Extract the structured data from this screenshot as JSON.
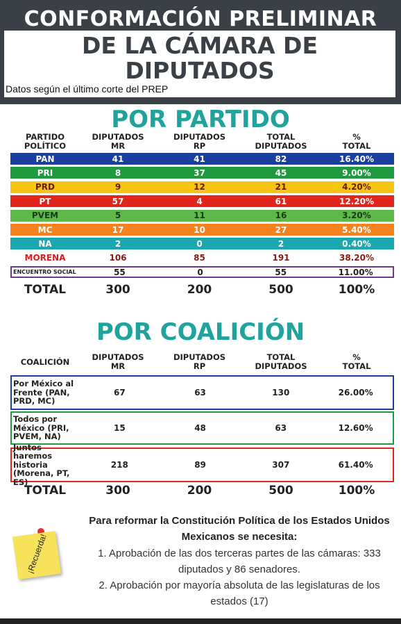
{
  "header": {
    "title_line1": "CONFORMACIÓN PRELIMINAR",
    "title_line2": "DE LA CÁMARA DE",
    "title_line3": "DIPUTADOS",
    "subtitle": "Datos según el último corte  del PREP"
  },
  "party_table": {
    "title": "POR PARTIDO",
    "columns": [
      "PARTIDO POLÍTICO",
      "DIPUTADOS MR",
      "DIPUTADOS RP",
      "TOTAL DIPUTADOS",
      "% TOTAL"
    ],
    "rows": [
      [
        "PAN",
        "41",
        "41",
        "82",
        "16.40%"
      ],
      [
        "PRI",
        "8",
        "37",
        "45",
        "9.00%"
      ],
      [
        "PRD",
        "9",
        "12",
        "21",
        "4.20%"
      ],
      [
        "PT",
        "57",
        "4",
        "61",
        "12.20%"
      ],
      [
        "PVEM",
        "5",
        "11",
        "16",
        "3.20%"
      ],
      [
        "MC",
        "17",
        "10",
        "27",
        "5.40%"
      ],
      [
        "NA",
        "2",
        "0",
        "2",
        "0.40%"
      ],
      [
        "MORENA",
        "106",
        "85",
        "191",
        "38.20%"
      ],
      [
        "ENCUENTRO SOCIAL",
        "55",
        "0",
        "55",
        "11.00%"
      ]
    ],
    "total": [
      "TOTAL",
      "300",
      "200",
      "500",
      "100%"
    ]
  },
  "coalition_table": {
    "title": "POR COALICIÓN",
    "columns": [
      "COALICIÓN",
      "DIPUTADOS MR",
      "DIPUTADOS RP",
      "TOTAL DIPUTADOS",
      "% TOTAL"
    ],
    "rows": [
      [
        "Por México al Frente (PAN, PRD, MC)",
        "67",
        "63",
        "130",
        "26.00%"
      ],
      [
        "Todos por México (PRI, PVEM, NA)",
        "15",
        "48",
        "63",
        "12.60%"
      ],
      [
        "Juntos haremos historia (Morena, PT, ES)",
        "218",
        "89",
        "307",
        "61.40%"
      ]
    ],
    "total": [
      "TOTAL",
      "300",
      "200",
      "500",
      "100%"
    ]
  },
  "note": {
    "sticker": "¡Recuerda!",
    "heading": "Para reformar la Constitución Política de los Estados Unidos Mexicanos se necesita:",
    "items": [
      "1. Aprobación de las dos terceras partes de las cámaras: 333 diputados y 86 senadores.",
      "2. Aprobación por mayoría absoluta de las legislaturas de los estados (17)"
    ]
  }
}
